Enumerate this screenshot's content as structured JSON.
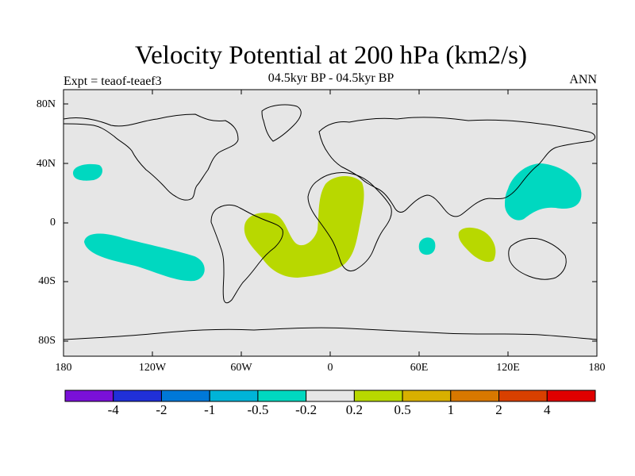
{
  "figure": {
    "title": "Velocity Potential at 200 hPa (km2/s)",
    "subtitle": "04.5kyr BP - 04.5kyr BP",
    "left_label": "Expt = teaof-teaef3",
    "right_label": "ANN"
  },
  "axes": {
    "lat_ticks": [
      "80N",
      "40N",
      "0",
      "40S",
      "80S"
    ],
    "lon_ticks": [
      "180",
      "120W",
      "60W",
      "0",
      "60E",
      "120E",
      "180"
    ]
  },
  "colors": {
    "land_background": "#e6e6e6",
    "positive_fill": "#b8d800",
    "negative_fill": "#00d8c0",
    "coastline": "#000000"
  },
  "colorbar": {
    "labels": [
      "-4",
      "-2",
      "-1",
      "-0.5",
      "-0.2",
      "0.2",
      "0.5",
      "1",
      "2",
      "4"
    ],
    "colors": [
      "#7a10d8",
      "#2030d8",
      "#0078d8",
      "#00b4d8",
      "#00d8c0",
      "#e6e6e6",
      "#b8d800",
      "#d8b000",
      "#d87800",
      "#d84000",
      "#e00000"
    ]
  }
}
